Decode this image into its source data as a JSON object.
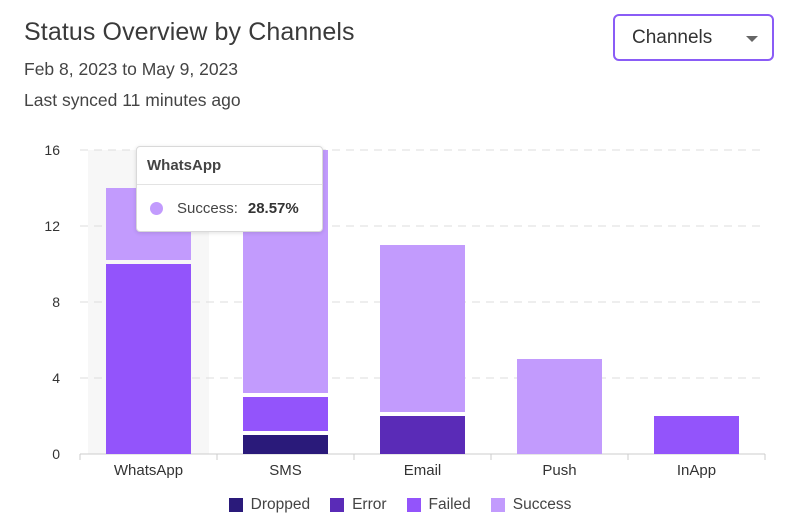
{
  "header": {
    "title": "Status Overview by Channels",
    "date_range": "Feb 8, 2023 to May 9, 2023",
    "synced": "Last synced 11 minutes ago"
  },
  "dropdown": {
    "value": "Channels"
  },
  "colors": {
    "Dropped": "#2a1a7a",
    "Error": "#5a2bb7",
    "Failed": "#9354fb",
    "Success": "#c29bfd",
    "hover_band": "#f7f7f7",
    "grid": "#dddddd"
  },
  "tooltip": {
    "title": "WhatsApp",
    "label": "Success:",
    "value": "28.57%",
    "color": "#c29bfd"
  },
  "chart_data": {
    "type": "bar",
    "stacked": true,
    "title": "Status Overview by Channels",
    "categories": [
      "WhatsApp",
      "SMS",
      "Email",
      "Push",
      "InApp"
    ],
    "series": [
      {
        "name": "Dropped",
        "values": [
          0,
          1,
          0,
          0,
          0
        ]
      },
      {
        "name": "Error",
        "values": [
          0,
          0,
          2,
          0,
          0
        ]
      },
      {
        "name": "Failed",
        "values": [
          10,
          2,
          0,
          0,
          2
        ]
      },
      {
        "name": "Success",
        "values": [
          4,
          13,
          9,
          5,
          0
        ]
      }
    ],
    "yticks": [
      0,
      4,
      8,
      12,
      16
    ],
    "ylim": [
      0,
      16
    ],
    "grid": true,
    "legend": "bottom",
    "highlighted_category": "WhatsApp"
  }
}
